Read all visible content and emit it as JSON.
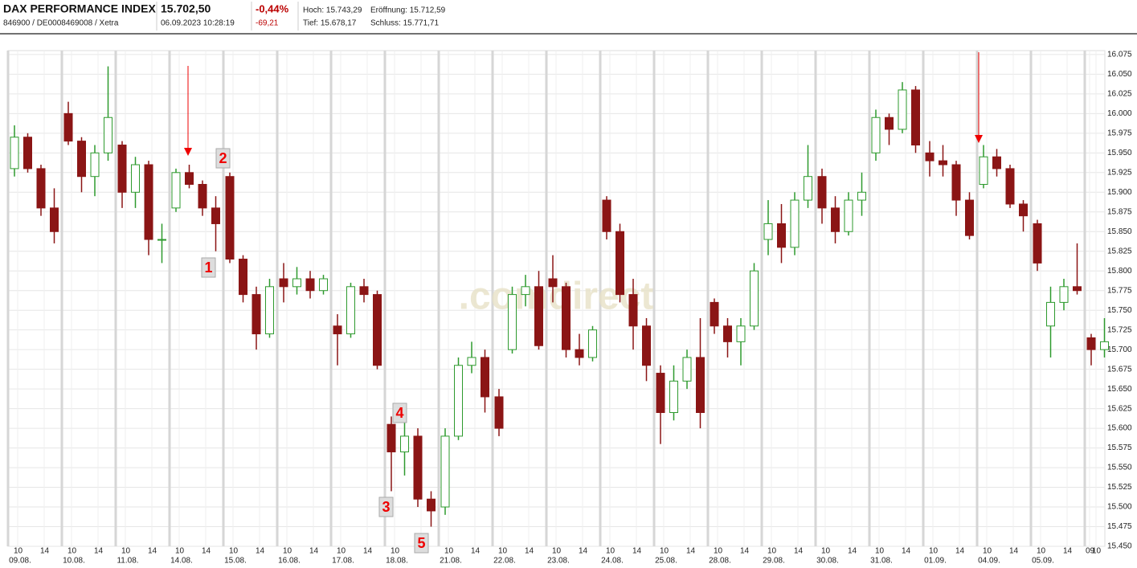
{
  "header": {
    "title": "DAX PERFORMANCE INDEX",
    "price": "15.702,50",
    "change_pct": "-0,44%",
    "change_abs": "-69,21",
    "ids": "846900 / DE0008469008 / Xetra",
    "timestamp": "06.09.2023 10:28:19",
    "high": "Hoch: 15.743,29",
    "open": "Eröffnung: 15.712,59",
    "low": "Tief: 15.678,17",
    "close": "Schluss: 15.771,71"
  },
  "chart_data": {
    "type": "candlestick",
    "watermark": ".comdirect",
    "up_color": "#2e9a2e",
    "down_color": "#8b1515",
    "ylim": [
      15450,
      16080
    ],
    "yticks": [
      {
        "value": 15450,
        "label": "15.450"
      },
      {
        "value": 15475,
        "label": "15.475"
      },
      {
        "value": 15500,
        "label": "15.500"
      },
      {
        "value": 15525,
        "label": "15.525"
      },
      {
        "value": 15550,
        "label": "15.550"
      },
      {
        "value": 15575,
        "label": "15.575"
      },
      {
        "value": 15600,
        "label": "15.600"
      },
      {
        "value": 15625,
        "label": "15.625"
      },
      {
        "value": 15650,
        "label": "15.650"
      },
      {
        "value": 15675,
        "label": "15.675"
      },
      {
        "value": 15700,
        "label": "15.700"
      },
      {
        "value": 15725,
        "label": "15.725"
      },
      {
        "value": 15750,
        "label": "15.750"
      },
      {
        "value": 15775,
        "label": "15.775"
      },
      {
        "value": 15800,
        "label": "15.800"
      },
      {
        "value": 15825,
        "label": "15.825"
      },
      {
        "value": 15850,
        "label": "15.850"
      },
      {
        "value": 15875,
        "label": "15.875"
      },
      {
        "value": 15900,
        "label": "15.900"
      },
      {
        "value": 15925,
        "label": "15.925"
      },
      {
        "value": 15950,
        "label": "15.950"
      },
      {
        "value": 15975,
        "label": "15.975"
      },
      {
        "value": 16000,
        "label": "16.000"
      },
      {
        "value": 16025,
        "label": "16.025"
      },
      {
        "value": 16050,
        "label": "16.050"
      },
      {
        "value": 16075,
        "label": "16.075"
      }
    ],
    "annotations": [
      "1",
      "2",
      "3",
      "4",
      "5"
    ],
    "days": [
      {
        "label": "09.08.",
        "hours": [
          "10",
          "14"
        ],
        "candles": [
          [
            15930,
            15985,
            15920,
            15970
          ],
          [
            15970,
            15975,
            15925,
            15930
          ],
          [
            15930,
            15935,
            15870,
            15880
          ],
          [
            15880,
            15905,
            15835,
            15850
          ]
        ]
      },
      {
        "label": "10.08.",
        "hours": [
          "10",
          "14"
        ],
        "candles": [
          [
            16000,
            16015,
            15960,
            15965
          ],
          [
            15965,
            15970,
            15900,
            15920
          ],
          [
            15920,
            15960,
            15895,
            15950
          ],
          [
            15950,
            16060,
            15940,
            15995
          ]
        ]
      },
      {
        "label": "11.08.",
        "hours": [
          "10",
          "14"
        ],
        "candles": [
          [
            15960,
            15965,
            15880,
            15900
          ],
          [
            15900,
            15945,
            15880,
            15935
          ],
          [
            15935,
            15940,
            15820,
            15840
          ],
          [
            15840,
            15860,
            15810,
            15840
          ]
        ]
      },
      {
        "label": "14.08.",
        "hours": [
          "10",
          "14"
        ],
        "candles": [
          [
            15880,
            15930,
            15875,
            15925
          ],
          [
            15925,
            15935,
            15905,
            15910
          ],
          [
            15910,
            15915,
            15870,
            15880
          ],
          [
            15880,
            15895,
            15825,
            15860
          ]
        ]
      },
      {
        "label": "15.08.",
        "hours": [
          "10",
          "14"
        ],
        "candles": [
          [
            15920,
            15925,
            15810,
            15815
          ],
          [
            15815,
            15820,
            15760,
            15770
          ],
          [
            15770,
            15780,
            15700,
            15720
          ],
          [
            15720,
            15790,
            15715,
            15780
          ]
        ]
      },
      {
        "label": "16.08.",
        "hours": [
          "10",
          "14"
        ],
        "candles": [
          [
            15790,
            15810,
            15760,
            15780
          ],
          [
            15780,
            15805,
            15770,
            15790
          ],
          [
            15790,
            15800,
            15765,
            15775
          ],
          [
            15775,
            15795,
            15770,
            15790
          ]
        ]
      },
      {
        "label": "17.08.",
        "hours": [
          "10",
          "14"
        ],
        "candles": [
          [
            15730,
            15745,
            15680,
            15720
          ],
          [
            15720,
            15785,
            15715,
            15780
          ],
          [
            15780,
            15790,
            15760,
            15770
          ],
          [
            15770,
            15775,
            15675,
            15680
          ]
        ]
      },
      {
        "label": "18.08.",
        "hours": [
          "10",
          "14"
        ],
        "candles": [
          [
            15605,
            15615,
            15520,
            15570
          ],
          [
            15570,
            15610,
            15540,
            15590
          ],
          [
            15590,
            15600,
            15500,
            15510
          ],
          [
            15510,
            15520,
            15475,
            15495
          ]
        ]
      },
      {
        "label": "21.08.",
        "hours": [
          "10",
          "14"
        ],
        "candles": [
          [
            15500,
            15600,
            15490,
            15590
          ],
          [
            15590,
            15690,
            15585,
            15680
          ],
          [
            15680,
            15710,
            15670,
            15690
          ],
          [
            15690,
            15700,
            15620,
            15640
          ]
        ]
      },
      {
        "label": "22.08.",
        "hours": [
          "10",
          "14"
        ],
        "candles": [
          [
            15640,
            15650,
            15590,
            15600
          ],
          [
            15700,
            15780,
            15695,
            15770
          ],
          [
            15770,
            15795,
            15755,
            15780
          ],
          [
            15780,
            15800,
            15700,
            15705
          ]
        ]
      },
      {
        "label": "23.08.",
        "hours": [
          "10",
          "14"
        ],
        "candles": [
          [
            15790,
            15820,
            15760,
            15780
          ],
          [
            15780,
            15785,
            15690,
            15700
          ],
          [
            15700,
            15720,
            15680,
            15690
          ],
          [
            15690,
            15730,
            15685,
            15725
          ]
        ]
      },
      {
        "label": "24.08.",
        "hours": [
          "10",
          "14"
        ],
        "candles": [
          [
            15890,
            15895,
            15840,
            15850
          ],
          [
            15850,
            15860,
            15760,
            15770
          ],
          [
            15770,
            15790,
            15700,
            15730
          ],
          [
            15730,
            15740,
            15660,
            15680
          ]
        ]
      },
      {
        "label": "25.08.",
        "hours": [
          "10",
          "14"
        ],
        "candles": [
          [
            15670,
            15680,
            15580,
            15620
          ],
          [
            15620,
            15680,
            15610,
            15660
          ],
          [
            15660,
            15700,
            15650,
            15690
          ],
          [
            15690,
            15740,
            15600,
            15620
          ]
        ]
      },
      {
        "label": "28.08.",
        "hours": [
          "10",
          "14"
        ],
        "candles": [
          [
            15760,
            15765,
            15720,
            15730
          ],
          [
            15730,
            15740,
            15690,
            15710
          ],
          [
            15710,
            15740,
            15680,
            15730
          ],
          [
            15730,
            15810,
            15725,
            15800
          ]
        ]
      },
      {
        "label": "29.08.",
        "hours": [
          "10",
          "14"
        ],
        "candles": [
          [
            15840,
            15890,
            15820,
            15860
          ],
          [
            15860,
            15885,
            15810,
            15830
          ],
          [
            15830,
            15900,
            15820,
            15890
          ],
          [
            15890,
            15960,
            15880,
            15920
          ]
        ]
      },
      {
        "label": "30.08.",
        "hours": [
          "10",
          "14"
        ],
        "candles": [
          [
            15920,
            15930,
            15860,
            15880
          ],
          [
            15880,
            15895,
            15835,
            15850
          ],
          [
            15850,
            15900,
            15845,
            15890
          ],
          [
            15890,
            15925,
            15870,
            15900
          ]
        ]
      },
      {
        "label": "31.08.",
        "hours": [
          "10",
          "14"
        ],
        "candles": [
          [
            15950,
            16005,
            15940,
            15995
          ],
          [
            15995,
            16000,
            15960,
            15980
          ],
          [
            15980,
            16040,
            15975,
            16030
          ],
          [
            16030,
            16035,
            15950,
            15960
          ]
        ]
      },
      {
        "label": "01.09.",
        "hours": [
          "10",
          "14"
        ],
        "candles": [
          [
            15950,
            15965,
            15920,
            15940
          ],
          [
            15940,
            15960,
            15920,
            15935
          ],
          [
            15935,
            15940,
            15870,
            15890
          ],
          [
            15890,
            15900,
            15840,
            15845
          ]
        ]
      },
      {
        "label": "04.09.",
        "hours": [
          "10",
          "14"
        ],
        "candles": [
          [
            15910,
            15960,
            15905,
            15945
          ],
          [
            15945,
            15955,
            15920,
            15930
          ],
          [
            15930,
            15935,
            15880,
            15885
          ],
          [
            15885,
            15890,
            15850,
            15870
          ]
        ]
      },
      {
        "label": "05.09.",
        "hours": [
          "10",
          "14"
        ],
        "candles": [
          [
            15860,
            15865,
            15800,
            15810
          ],
          [
            15730,
            15780,
            15690,
            15760
          ],
          [
            15760,
            15790,
            15750,
            15780
          ],
          [
            15780,
            15835,
            15770,
            15775
          ]
        ]
      },
      {
        "label": null,
        "hours": [
          "09",
          "10"
        ],
        "candles": [
          [
            15715,
            15720,
            15680,
            15700
          ],
          [
            15700,
            15740,
            15690,
            15710
          ]
        ]
      }
    ]
  }
}
